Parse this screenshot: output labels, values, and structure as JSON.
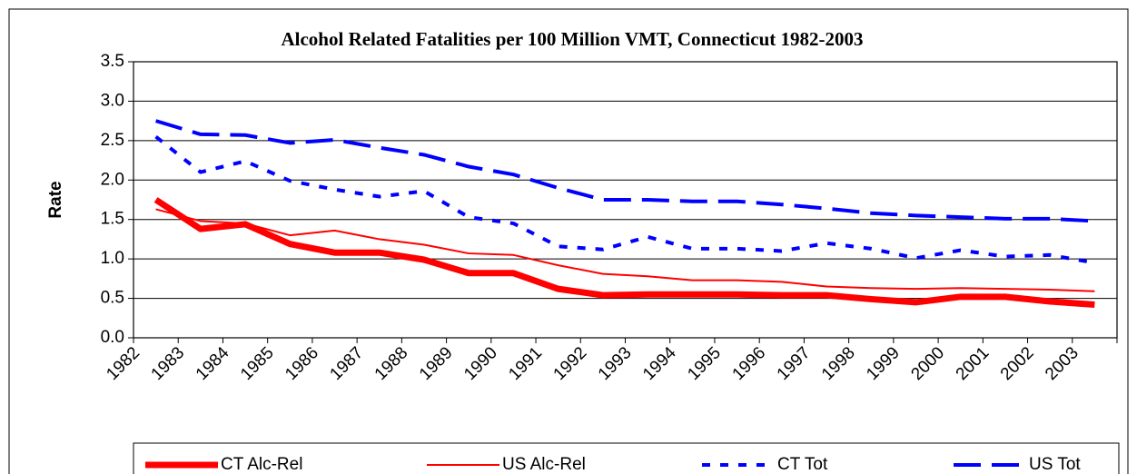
{
  "chart_data": {
    "type": "line",
    "title": "Alcohol Related Fatalities per 100 Million VMT, Connecticut 1982-2003",
    "y_label": "Rate",
    "categories": [
      "1982",
      "1983",
      "1984",
      "1985",
      "1986",
      "1987",
      "1988",
      "1989",
      "1990",
      "1991",
      "1992",
      "1993",
      "1994",
      "1995",
      "1996",
      "1997",
      "1998",
      "1999",
      "2000",
      "2001",
      "2002",
      "2003"
    ],
    "series": [
      {
        "name": "CT Alc-Rel",
        "color": "#ff0000",
        "values": [
          1.75,
          1.38,
          1.44,
          1.19,
          1.08,
          1.08,
          0.99,
          0.82,
          0.82,
          0.62,
          0.54,
          0.55,
          0.55,
          0.55,
          0.54,
          0.54,
          0.49,
          0.45,
          0.52,
          0.52,
          0.46,
          0.42
        ]
      },
      {
        "name": "US Alc-Rel",
        "color": "#ff0000",
        "values": [
          1.63,
          1.48,
          1.45,
          1.3,
          1.36,
          1.25,
          1.18,
          1.07,
          1.05,
          0.92,
          0.81,
          0.78,
          0.73,
          0.73,
          0.71,
          0.65,
          0.63,
          0.62,
          0.63,
          0.62,
          0.61,
          0.59
        ]
      },
      {
        "name": "CT Tot",
        "color": "#0000ff",
        "values": [
          2.55,
          2.1,
          2.24,
          1.99,
          1.88,
          1.79,
          1.86,
          1.53,
          1.45,
          1.16,
          1.12,
          1.28,
          1.13,
          1.13,
          1.1,
          1.2,
          1.13,
          1.01,
          1.11,
          1.03,
          1.05,
          0.95
        ]
      },
      {
        "name": "US Tot",
        "color": "#0000ff",
        "values": [
          2.75,
          2.58,
          2.57,
          2.47,
          2.51,
          2.41,
          2.32,
          2.17,
          2.07,
          1.9,
          1.75,
          1.75,
          1.73,
          1.73,
          1.69,
          1.64,
          1.58,
          1.55,
          1.53,
          1.51,
          1.51,
          1.48
        ]
      }
    ],
    "ylim": [
      0,
      3.5
    ],
    "yticks": [
      {
        "value": 0,
        "label": "0.0"
      },
      0.5,
      {
        "value": 1,
        "label": "1.0"
      },
      1.5,
      {
        "value": 2,
        "label": "2.0"
      },
      2.5,
      {
        "value": 3,
        "label": "3.0"
      },
      3.5
    ],
    "grid": true,
    "legend": "bottom"
  }
}
